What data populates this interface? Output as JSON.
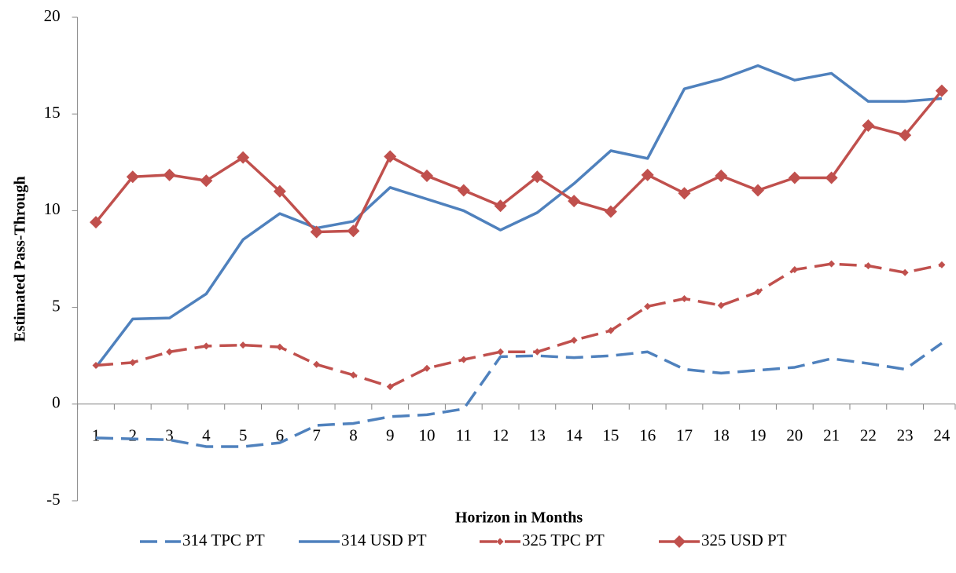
{
  "chart_data": {
    "type": "line",
    "x_label": "Horizon in Months",
    "y_label": "Estimated Pass-Through",
    "categories": [
      "1",
      "2",
      "3",
      "4",
      "5",
      "6",
      "7",
      "8",
      "9",
      "10",
      "11",
      "12",
      "13",
      "14",
      "15",
      "16",
      "17",
      "18",
      "19",
      "20",
      "21",
      "22",
      "23",
      "24"
    ],
    "ylim": [
      -5,
      20
    ],
    "yticks": [
      -5,
      0,
      5,
      10,
      15,
      20
    ],
    "legend": "bottom",
    "series": [
      {
        "name": "314 TPC PT",
        "color": "#4f81bd",
        "dash": true,
        "marker": "none",
        "values": [
          -1.75,
          -1.8,
          -1.85,
          -2.2,
          -2.2,
          -2.0,
          -1.1,
          -1.0,
          -0.65,
          -0.55,
          -0.25,
          2.45,
          2.5,
          2.4,
          2.5,
          2.7,
          1.8,
          1.6,
          1.75,
          1.9,
          2.35,
          2.1,
          1.8,
          3.15
        ]
      },
      {
        "name": "314 USD PT",
        "color": "#4f81bd",
        "dash": false,
        "marker": "none",
        "values": [
          1.9,
          4.4,
          4.45,
          5.7,
          8.5,
          9.85,
          9.1,
          9.45,
          11.2,
          10.6,
          10.0,
          9.0,
          9.9,
          11.4,
          13.1,
          12.7,
          16.3,
          16.8,
          17.5,
          16.75,
          17.1,
          15.65,
          15.65,
          15.8
        ]
      },
      {
        "name": "325 TPC PT",
        "color": "#c0504d",
        "dash": true,
        "marker": "small-diamond",
        "values": [
          2.0,
          2.15,
          2.7,
          3.0,
          3.05,
          2.95,
          2.05,
          1.5,
          0.9,
          1.85,
          2.3,
          2.7,
          2.7,
          3.3,
          3.8,
          5.05,
          5.45,
          5.1,
          5.8,
          6.95,
          7.25,
          7.15,
          6.8,
          7.2
        ]
      },
      {
        "name": "325 USD PT",
        "color": "#c0504d",
        "dash": false,
        "marker": "diamond",
        "values": [
          9.4,
          11.75,
          11.85,
          11.55,
          12.75,
          11.0,
          8.9,
          8.95,
          12.8,
          11.8,
          11.05,
          10.25,
          11.75,
          10.5,
          9.95,
          11.85,
          10.9,
          11.8,
          11.05,
          11.7,
          11.7,
          14.4,
          13.9,
          16.2
        ]
      }
    ]
  }
}
